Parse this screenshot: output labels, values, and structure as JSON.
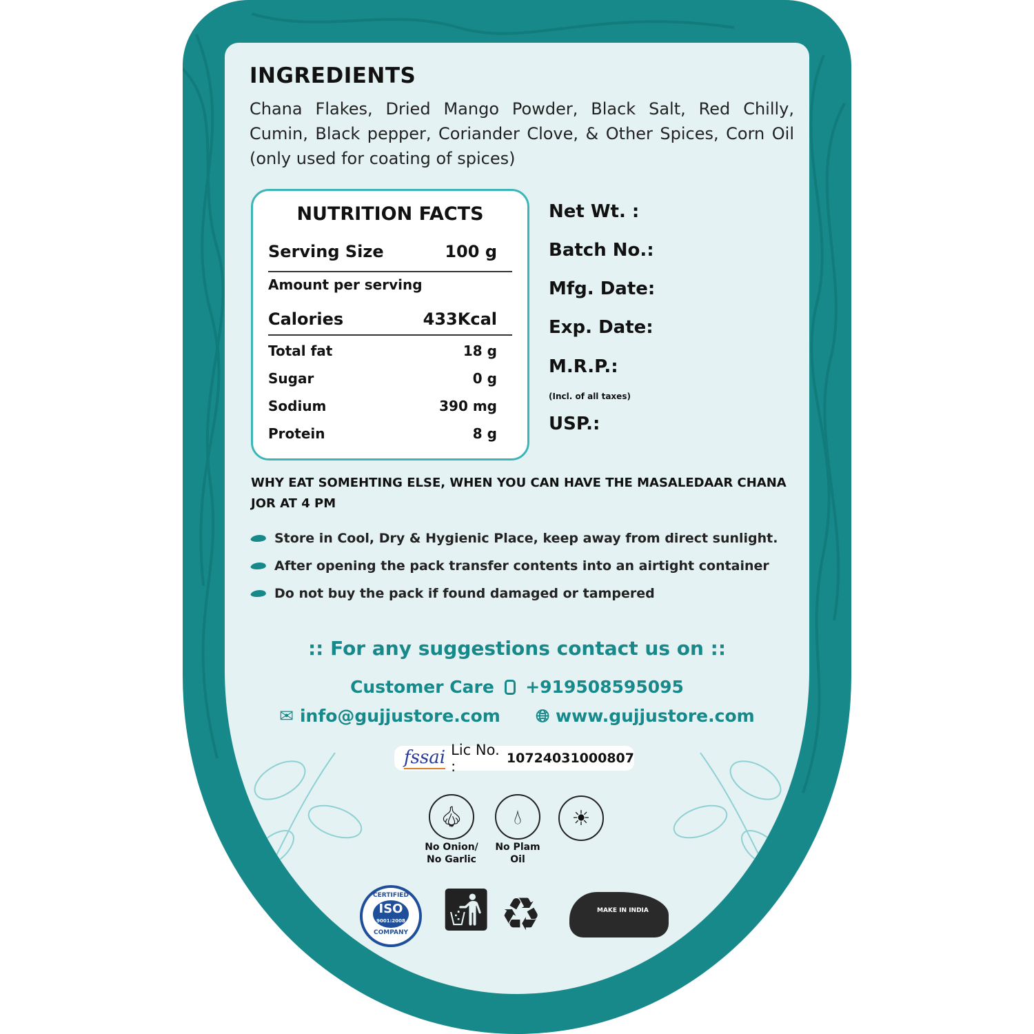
{
  "ingredients": {
    "title": "INGREDIENTS",
    "text": "Chana Flakes, Dried Mango Powder, Black Salt, Red Chilly, Cumin, Black pepper, Coriander Clove, & Other Spices, Corn Oil (only used for coating of spices)"
  },
  "nutrition": {
    "title": "NUTRITION FACTS",
    "serving_label": "Serving Size",
    "serving_value": "100 g",
    "amount_per_serving": "Amount per serving",
    "calories_label": "Calories",
    "calories_value": "433Kcal",
    "rows": [
      {
        "label": "Total fat",
        "value": "18 g"
      },
      {
        "label": "Sugar",
        "value": "0 g"
      },
      {
        "label": "Sodium",
        "value": "390 mg"
      },
      {
        "label": "Protein",
        "value": "8 g"
      }
    ]
  },
  "meta": {
    "net_wt": "Net Wt. :",
    "batch": "Batch No.:",
    "mfg": "Mfg. Date:",
    "exp": "Exp. Date:",
    "mrp": "M.R.P.:",
    "mrp_note": "(Incl. of all taxes)",
    "usp": "USP.:"
  },
  "tagline": "WHY EAT SOMEHTING ELSE, WHEN YOU CAN HAVE THE MASALEDAAR CHANA JOR AT 4 PM",
  "bullets": [
    "Store in Cool, Dry & Hygienic Place, keep away from direct sunlight.",
    "After opening the pack transfer contents into an airtight container",
    "Do not buy the pack if found damaged or tampered"
  ],
  "contact": {
    "heading": ":: For any suggestions contact us on ::",
    "customer_care": "Customer Care",
    "phone": "+919508595095",
    "email": "info@gujjustore.com",
    "website": "www.gujjustore.com"
  },
  "fssai": {
    "logo": "fssai",
    "lic_label": "Lic No. :",
    "lic_no": "10724031000807"
  },
  "badges": [
    {
      "icon": "garlic-icon",
      "label1": "No Onion/",
      "label2": "No Garlic"
    },
    {
      "icon": "oil-drop-icon",
      "label1": "No Plam",
      "label2": "Oil"
    },
    {
      "icon": "sun-icon"
    }
  ],
  "logos": {
    "iso": [
      "CERTIFIED",
      "ISO",
      "9001:2008",
      "COMPANY"
    ],
    "make_in_india": "MAKE IN INDIA"
  },
  "colors": {
    "teal": "#17898a",
    "panel": "#e4f2f3",
    "border": "#3cb5b7"
  }
}
